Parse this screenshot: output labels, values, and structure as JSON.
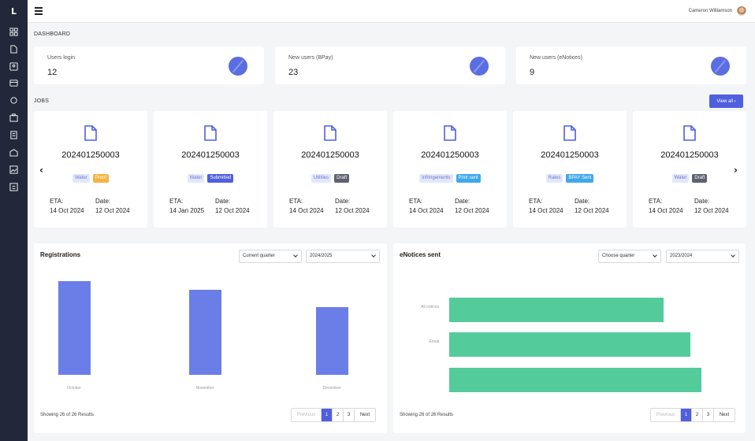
{
  "app": {
    "logo_letter": "L"
  },
  "sidebar": {
    "icons": [
      "grid-icon",
      "document-icon",
      "id-card-icon",
      "card-icon",
      "refresh-icon",
      "briefcase-icon",
      "notes-icon",
      "mail-icon",
      "image-icon",
      "report-icon"
    ]
  },
  "header": {
    "user_name": "Cameron Williamson"
  },
  "dashboard": {
    "title": "DASHBOARD"
  },
  "stats": [
    {
      "label": "Users login",
      "value": "12"
    },
    {
      "label": "New users (BPay)",
      "value": "23"
    },
    {
      "label": "New users (eNotices)",
      "value": "9"
    }
  ],
  "jobs": {
    "title": "JOBS",
    "view_all_label": "View all ›",
    "prev_arrow": "‹",
    "next_arrow": "›",
    "eta_label": "ETA:",
    "date_label": "Date:",
    "items": [
      {
        "number": "202401250003",
        "type": "Water",
        "status": "Proof",
        "eta": "14 Oct 2024",
        "date": "12 Oct 2024"
      },
      {
        "number": "202401250003",
        "type": "Water",
        "status": "Submitted",
        "eta": "14 Jan 2025",
        "date": "12 Oct 2024"
      },
      {
        "number": "202401250003",
        "type": "Utilities",
        "status": "Draft",
        "eta": "14 Oct 2024",
        "date": "12 Oct 2024"
      },
      {
        "number": "202401250003",
        "type": "Infringements",
        "status": "Print sent",
        "eta": "14 Oct 2024",
        "date": "12 Oct 2024"
      },
      {
        "number": "202401250003",
        "type": "Rates",
        "status": "BPAY Sent",
        "eta": "14 Oct 2024",
        "date": "12 Oct 2024"
      },
      {
        "number": "202401250003",
        "type": "Water",
        "status": "Draft",
        "eta": "14 Oct 2024",
        "date": "12 Oct 2024"
      }
    ]
  },
  "registrations": {
    "title": "Registrations",
    "quarter_select": "Current quarter",
    "year_select": "2024/2025",
    "results": "Showing 26 of 26 Results",
    "pagination": {
      "prev": "Previous",
      "pages": [
        "1",
        "2",
        "3"
      ],
      "next": "Next",
      "active": "1"
    }
  },
  "enotices": {
    "title": "eNotices sent",
    "quarter_select": "Choose quarter",
    "year_select": "2023/2024",
    "results": "Showing 26 of 26 Results",
    "pagination": {
      "prev": "Previous",
      "pages": [
        "1",
        "2",
        "3"
      ],
      "next": "Next",
      "active": "1"
    }
  },
  "chart_data": [
    {
      "type": "bar",
      "orientation": "vertical",
      "categories": [
        "October",
        "November",
        "December"
      ],
      "values": [
        100,
        91,
        72
      ],
      "color": "#6b7ee8",
      "grid": false
    },
    {
      "type": "bar",
      "orientation": "horizontal",
      "categories": [
        "All notices",
        "Email",
        ""
      ],
      "values": [
        80,
        90,
        94
      ],
      "color": "#53cb9b",
      "grid": false
    }
  ],
  "colors": {
    "sidebar": "#22283a",
    "accent": "#4f5fe0",
    "stat_circle": "#5b6ee1",
    "vertical_bars": "#6b7ee8",
    "horizontal_bars": "#53cb9b"
  }
}
